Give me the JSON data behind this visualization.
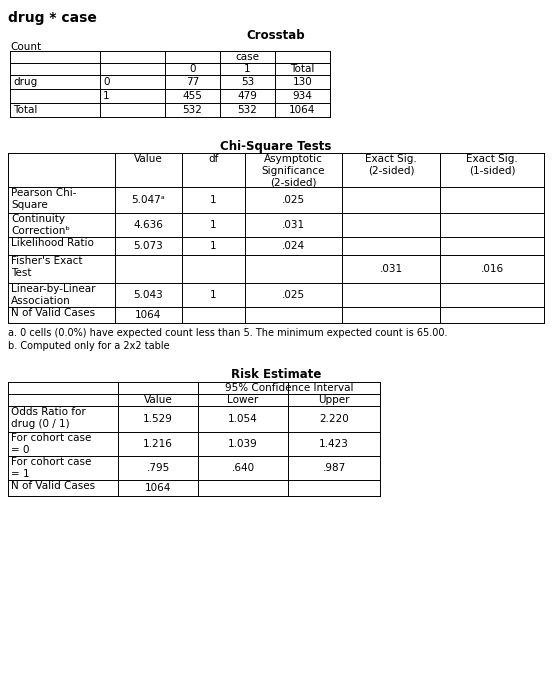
{
  "title": "drug * case",
  "bg_color": "#ffffff",
  "crosstab_title": "Crosstab",
  "crosstab_count_label": "Count",
  "chi_title": "Chi-Square Tests",
  "chi_footnotes": [
    "a. 0 cells (0.0%) have expected count less than 5. The minimum expected count is 65.00.",
    "b. Computed only for a 2x2 table"
  ],
  "risk_title": "Risk Estimate",
  "font_family": "DejaVu Sans",
  "title_fontsize": 10,
  "header_fontsize": 7.5,
  "cell_fontsize": 7.5,
  "footnote_fontsize": 7.0
}
